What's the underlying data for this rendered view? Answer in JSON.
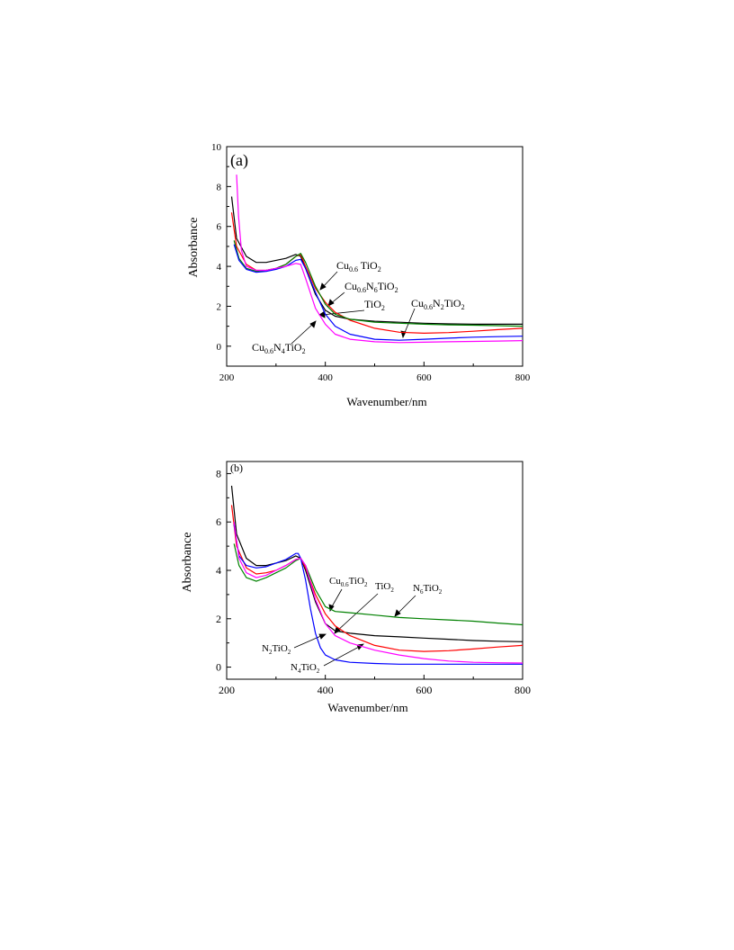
{
  "chart_data": [
    {
      "type": "line",
      "panel_label": "(a)",
      "xlabel": "Wavenumber/nm",
      "ylabel": "Absorbance",
      "xlim": [
        200,
        800
      ],
      "ylim": [
        -1,
        10
      ],
      "xticks": [
        200,
        400,
        600,
        800
      ],
      "yticks": [
        0,
        2,
        4,
        6,
        8,
        10
      ],
      "series": [
        {
          "name": "TiO2",
          "color": "#000000",
          "x": [
            210,
            220,
            240,
            260,
            280,
            300,
            320,
            340,
            350,
            360,
            380,
            400,
            420,
            450,
            500,
            550,
            600,
            650,
            700,
            750,
            800
          ],
          "y": [
            7.5,
            5.4,
            4.5,
            4.2,
            4.2,
            4.3,
            4.4,
            4.6,
            4.5,
            3.9,
            2.6,
            1.8,
            1.5,
            1.35,
            1.25,
            1.2,
            1.15,
            1.12,
            1.1,
            1.1,
            1.1
          ]
        },
        {
          "name": "Cu0.6TiO2",
          "color": "#ff0000",
          "x": [
            210,
            220,
            240,
            260,
            280,
            300,
            320,
            340,
            350,
            360,
            380,
            400,
            420,
            450,
            500,
            550,
            600,
            650,
            700,
            750,
            800
          ],
          "y": [
            6.7,
            5.0,
            4.1,
            3.8,
            3.8,
            3.9,
            4.1,
            4.5,
            4.6,
            4.0,
            2.9,
            2.2,
            1.7,
            1.3,
            0.9,
            0.7,
            0.65,
            0.68,
            0.75,
            0.83,
            0.9
          ]
        },
        {
          "name": "Cu0.6N6TiO2",
          "color": "#008000",
          "x": [
            215,
            225,
            240,
            260,
            280,
            300,
            320,
            340,
            350,
            360,
            380,
            400,
            420,
            450,
            500,
            550,
            600,
            650,
            700,
            750,
            800
          ],
          "y": [
            5.3,
            4.4,
            3.9,
            3.75,
            3.8,
            3.9,
            4.1,
            4.5,
            4.65,
            4.2,
            3.0,
            2.1,
            1.6,
            1.35,
            1.2,
            1.15,
            1.1,
            1.07,
            1.05,
            1.03,
            1.0
          ]
        },
        {
          "name": "Cu0.6N2TiO2",
          "color": "#0000ff",
          "x": [
            215,
            225,
            240,
            260,
            280,
            300,
            320,
            340,
            350,
            360,
            380,
            400,
            420,
            450,
            500,
            550,
            600,
            650,
            700,
            750,
            800
          ],
          "y": [
            5.1,
            4.3,
            3.85,
            3.7,
            3.75,
            3.85,
            4.0,
            4.3,
            4.35,
            3.9,
            2.7,
            1.6,
            1.0,
            0.6,
            0.35,
            0.3,
            0.35,
            0.4,
            0.45,
            0.48,
            0.5
          ]
        },
        {
          "name": "Cu0.6N4TiO2",
          "color": "#ff00ff",
          "x": [
            220,
            224,
            230,
            240,
            260,
            280,
            300,
            320,
            340,
            350,
            360,
            380,
            400,
            420,
            450,
            500,
            550,
            600,
            650,
            700,
            750,
            800
          ],
          "y": [
            8.6,
            6.5,
            4.8,
            4.0,
            3.8,
            3.8,
            3.9,
            4.0,
            4.15,
            4.1,
            3.4,
            1.9,
            1.1,
            0.6,
            0.35,
            0.22,
            0.18,
            0.2,
            0.22,
            0.24,
            0.26,
            0.28
          ]
        }
      ],
      "annotations": [
        {
          "base": "Cu",
          "sub1": "0.6",
          "rest": " TiO",
          "sub2": "2"
        },
        {
          "base": "Cu",
          "sub1": "0.6",
          "mid": "N",
          "sub3": "6",
          "rest": "TiO",
          "sub2": "2"
        },
        {
          "base": "TiO",
          "sub2": "2"
        },
        {
          "base": "Cu",
          "sub1": "0.6",
          "mid": "N",
          "sub3": "2",
          "rest": "TiO",
          "sub2": "2"
        },
        {
          "base": "Cu",
          "sub1": "0.6",
          "mid": "N",
          "sub3": "4",
          "rest": "TiO",
          "sub2": "2"
        }
      ]
    },
    {
      "type": "line",
      "panel_label": "(b)",
      "xlabel": "Wavenumber/nm",
      "ylabel": "Absorbance",
      "xlim": [
        200,
        800
      ],
      "ylim": [
        -0.5,
        8.5
      ],
      "xticks": [
        200,
        400,
        600,
        800
      ],
      "yticks": [
        0,
        2,
        4,
        6,
        8
      ],
      "series": [
        {
          "name": "TiO2",
          "color": "#000000",
          "x": [
            210,
            220,
            240,
            260,
            280,
            300,
            320,
            340,
            350,
            360,
            380,
            400,
            420,
            450,
            500,
            550,
            600,
            650,
            700,
            750,
            800
          ],
          "y": [
            7.5,
            5.5,
            4.5,
            4.2,
            4.2,
            4.3,
            4.4,
            4.6,
            4.5,
            4.0,
            2.7,
            1.8,
            1.5,
            1.4,
            1.3,
            1.25,
            1.2,
            1.15,
            1.1,
            1.07,
            1.05
          ]
        },
        {
          "name": "Cu0.6TiO2",
          "color": "#ff0000",
          "x": [
            210,
            220,
            240,
            260,
            280,
            300,
            320,
            340,
            350,
            360,
            380,
            400,
            420,
            450,
            500,
            550,
            600,
            650,
            700,
            750,
            800
          ],
          "y": [
            6.7,
            5.0,
            4.1,
            3.85,
            3.9,
            4.0,
            4.2,
            4.45,
            4.5,
            4.1,
            3.0,
            2.2,
            1.7,
            1.3,
            0.9,
            0.7,
            0.65,
            0.68,
            0.75,
            0.83,
            0.9
          ]
        },
        {
          "name": "N6TiO2",
          "color": "#008000",
          "x": [
            215,
            225,
            240,
            260,
            280,
            300,
            320,
            340,
            350,
            360,
            380,
            400,
            420,
            450,
            500,
            550,
            600,
            650,
            700,
            750,
            800
          ],
          "y": [
            5.1,
            4.2,
            3.7,
            3.55,
            3.7,
            3.9,
            4.1,
            4.4,
            4.5,
            4.2,
            3.2,
            2.5,
            2.3,
            2.25,
            2.15,
            2.05,
            2.0,
            1.95,
            1.9,
            1.82,
            1.75
          ]
        },
        {
          "name": "N4TiO2",
          "color": "#0000ff",
          "x": [
            215,
            225,
            240,
            260,
            280,
            300,
            320,
            340,
            345,
            350,
            360,
            370,
            380,
            390,
            400,
            420,
            450,
            500,
            550,
            600,
            700,
            800
          ],
          "y": [
            5.9,
            4.6,
            4.2,
            4.1,
            4.15,
            4.3,
            4.45,
            4.7,
            4.7,
            4.5,
            3.6,
            2.4,
            1.4,
            0.8,
            0.5,
            0.3,
            0.2,
            0.15,
            0.12,
            0.12,
            0.12,
            0.12
          ]
        },
        {
          "name": "N2TiO2",
          "color": "#ff00ff",
          "x": [
            215,
            225,
            240,
            260,
            280,
            300,
            320,
            340,
            350,
            360,
            380,
            400,
            420,
            450,
            500,
            550,
            600,
            650,
            700,
            750,
            800
          ],
          "y": [
            6.0,
            4.5,
            3.9,
            3.7,
            3.8,
            4.0,
            4.2,
            4.45,
            4.5,
            4.2,
            2.8,
            1.8,
            1.3,
            1.0,
            0.7,
            0.5,
            0.35,
            0.25,
            0.2,
            0.18,
            0.17
          ]
        }
      ],
      "annotations": [
        {
          "base": "Cu",
          "sub1": "0.6",
          "rest": "TiO",
          "sub2": "2"
        },
        {
          "base": "TiO",
          "sub2": "2"
        },
        {
          "base": "N",
          "sub3": "6",
          "rest": "TiO",
          "sub2": "2"
        },
        {
          "base": "N",
          "sub3": "2",
          "rest": "TiO",
          "sub2": "2"
        },
        {
          "base": "N",
          "sub3": "4",
          "rest": "TiO",
          "sub2": "2"
        }
      ]
    }
  ]
}
